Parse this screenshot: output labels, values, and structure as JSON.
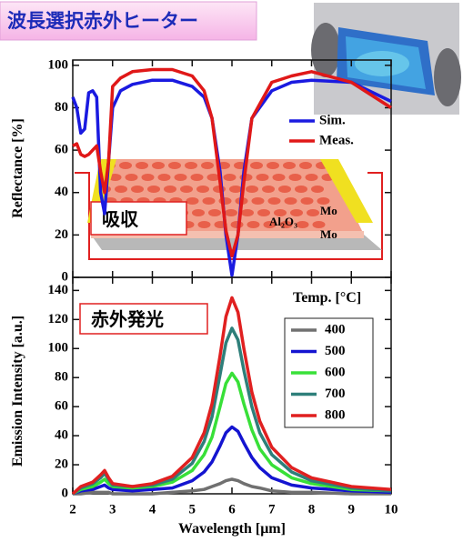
{
  "title": "波長選択赤外ヒーター",
  "chart_data": [
    {
      "type": "line",
      "y_label": "Reflectance [%]",
      "xlim": [
        2,
        10
      ],
      "ylim": [
        0,
        102.5
      ],
      "yticks": [
        0,
        20,
        40,
        60,
        80,
        100
      ],
      "x": [
        2,
        2.1,
        2.2,
        2.3,
        2.4,
        2.5,
        2.6,
        2.7,
        2.8,
        2.9,
        3,
        3.2,
        3.5,
        4,
        4.5,
        5,
        5.3,
        5.5,
        5.7,
        5.85,
        6,
        6.15,
        6.3,
        6.5,
        7,
        7.5,
        8,
        9,
        10
      ],
      "series": [
        {
          "name": "Sim.",
          "color": "#1a1ae0",
          "values": [
            85,
            80,
            68,
            70,
            87,
            88,
            85,
            40,
            30,
            55,
            80,
            88,
            91,
            93,
            93,
            90,
            85,
            75,
            50,
            20,
            1,
            20,
            50,
            75,
            88,
            92,
            93,
            92,
            83
          ]
        },
        {
          "name": "Meas.",
          "color": "#e01818",
          "values": [
            62,
            63,
            58,
            57,
            58,
            60,
            62,
            50,
            40,
            55,
            90,
            94,
            97,
            98,
            98,
            95,
            88,
            75,
            45,
            22,
            10,
            20,
            45,
            75,
            92,
            95,
            97,
            92,
            80
          ]
        }
      ],
      "annotations": [
        "吸収",
        "Al₂O₃",
        "Mo",
        "Mo"
      ]
    },
    {
      "type": "line",
      "x_label": "Wavelength [μm]",
      "y_label": "Emission Intensity [a.u.]",
      "xlim": [
        2,
        10
      ],
      "xticks": [
        2,
        3,
        4,
        5,
        6,
        7,
        8,
        9,
        10
      ],
      "ylim": [
        0,
        149
      ],
      "yticks": [
        0,
        20,
        40,
        60,
        80,
        100,
        120,
        140
      ],
      "x": [
        2,
        2.2,
        2.5,
        2.7,
        2.8,
        2.9,
        3,
        3.5,
        4,
        4.5,
        5,
        5.3,
        5.5,
        5.7,
        5.85,
        6,
        6.15,
        6.3,
        6.5,
        6.7,
        7,
        7.5,
        8,
        9,
        10
      ],
      "legend_title": "Temp. [°C]",
      "series": [
        {
          "name": "400",
          "color": "#707070",
          "values": [
            0,
            0,
            1,
            1,
            1,
            1,
            0,
            0,
            0,
            1,
            2,
            3,
            5,
            7,
            9,
            10,
            9,
            7,
            5,
            4,
            2,
            1,
            1,
            0,
            0
          ]
        },
        {
          "name": "500",
          "color": "#1414d0",
          "values": [
            0,
            2,
            3,
            5,
            6,
            4,
            3,
            2,
            3,
            4,
            9,
            15,
            22,
            33,
            42,
            46,
            43,
            35,
            25,
            18,
            11,
            6,
            4,
            2,
            1
          ]
        },
        {
          "name": "600",
          "color": "#38e038",
          "values": [
            0,
            3,
            5,
            8,
            10,
            7,
            5,
            4,
            5,
            8,
            16,
            27,
            39,
            60,
            76,
            83,
            77,
            62,
            44,
            31,
            20,
            11,
            7,
            3,
            2
          ]
        },
        {
          "name": "700",
          "color": "#2e7f7a",
          "values": [
            0,
            4,
            7,
            11,
            14,
            10,
            6,
            5,
            6,
            10,
            21,
            36,
            53,
            82,
            104,
            114,
            106,
            85,
            60,
            42,
            27,
            15,
            9,
            4,
            2
          ]
        },
        {
          "name": "800",
          "color": "#e02020",
          "values": [
            0,
            5,
            8,
            13,
            16,
            11,
            7,
            5,
            7,
            12,
            25,
            42,
            62,
            95,
            122,
            135,
            125,
            100,
            70,
            50,
            32,
            18,
            11,
            5,
            3
          ]
        }
      ],
      "annotations": [
        "赤外発光"
      ]
    }
  ]
}
